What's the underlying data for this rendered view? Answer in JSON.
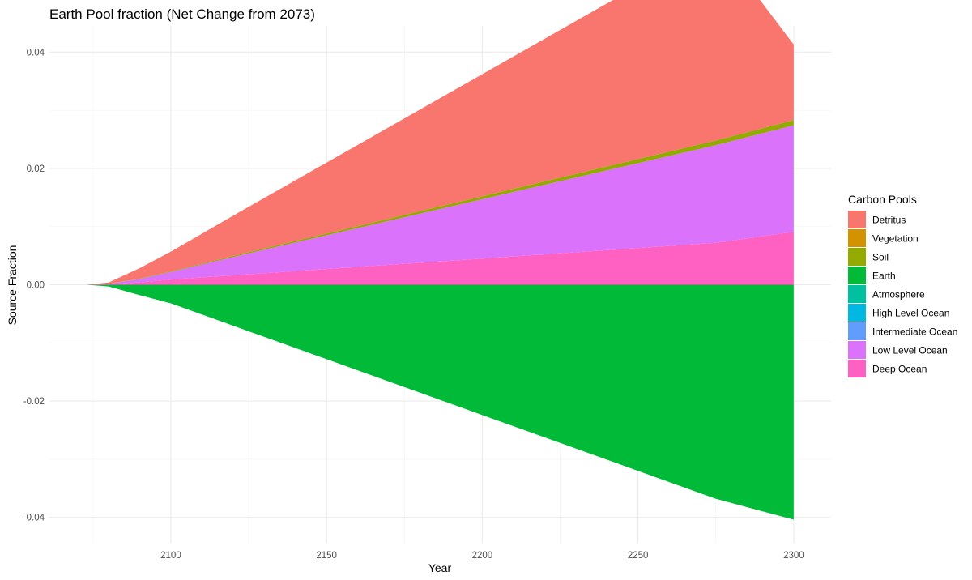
{
  "chart_data": {
    "type": "area",
    "title": "Earth Pool fraction (Net Change from 2073)",
    "xlabel": "Year",
    "ylabel": "Source Fraction",
    "xlim": [
      2061,
      2312
    ],
    "ylim": [
      -0.0445,
      0.0445
    ],
    "x_ticks": [
      2100,
      2150,
      2200,
      2250,
      2300
    ],
    "x_tick_labels": [
      "2100",
      "2150",
      "2200",
      "2250",
      "2300"
    ],
    "y_ticks": [
      -0.04,
      -0.02,
      0,
      0.02,
      0.04
    ],
    "y_tick_labels": [
      "-0.04",
      "-0.02",
      "0.00",
      "0.02",
      "0.04"
    ],
    "grid": true,
    "legend_position": "right",
    "legend_title": "Carbon Pools",
    "x": [
      2073,
      2080,
      2090,
      2100,
      2125,
      2150,
      2175,
      2200,
      2225,
      2250,
      2275,
      2300
    ],
    "series": [
      {
        "name": "Detritus",
        "color": "#F8766D",
        "values": [
          0,
          0.00025,
          0.0018,
          0.0034,
          0.0078,
          0.0122,
          0.0166,
          0.021,
          0.0254,
          0.0298,
          0.0342,
          0.013
        ]
      },
      {
        "name": "Vegetation",
        "color": "#D39200",
        "values": [
          0,
          0,
          0,
          0,
          0,
          0,
          0,
          0,
          0,
          0,
          0,
          0
        ]
      },
      {
        "name": "Soil",
        "color": "#93AA00",
        "values": [
          0,
          1e-05,
          6e-05,
          0.0001,
          0.0002,
          0.0003,
          0.0004,
          0.0005,
          0.0006,
          0.0007,
          0.0008,
          0.0009
        ]
      },
      {
        "name": "Earth",
        "color": "#00BA38",
        "values": [
          0,
          -0.0003,
          -0.0018,
          -0.0032,
          -0.008,
          -0.0128,
          -0.0176,
          -0.0224,
          -0.0272,
          -0.032,
          -0.0368,
          -0.0404
        ]
      },
      {
        "name": "Atmosphere",
        "color": "#00C19F",
        "values": [
          0,
          0,
          0,
          0,
          0,
          0,
          0,
          0,
          0,
          0,
          0,
          0
        ]
      },
      {
        "name": "High Level Ocean",
        "color": "#00B9E3",
        "values": [
          0,
          0,
          0,
          0,
          0,
          0,
          0,
          0,
          0,
          0,
          0,
          0
        ]
      },
      {
        "name": "Intermediate Ocean",
        "color": "#619CFF",
        "values": [
          0,
          0,
          0,
          0,
          0,
          0,
          0,
          0,
          0,
          0,
          0,
          0
        ]
      },
      {
        "name": "Low Level Ocean",
        "color": "#DB72FB",
        "values": [
          0,
          8e-05,
          0.0006,
          0.0013,
          0.0036,
          0.0058,
          0.008,
          0.0102,
          0.0124,
          0.0146,
          0.0168,
          0.0183
        ]
      },
      {
        "name": "Deep Ocean",
        "color": "#FF61C3",
        "values": [
          0,
          5e-05,
          0.0004,
          0.0009,
          0.0018,
          0.0027,
          0.0036,
          0.0045,
          0.0054,
          0.0063,
          0.0072,
          0.0091
        ]
      }
    ]
  }
}
